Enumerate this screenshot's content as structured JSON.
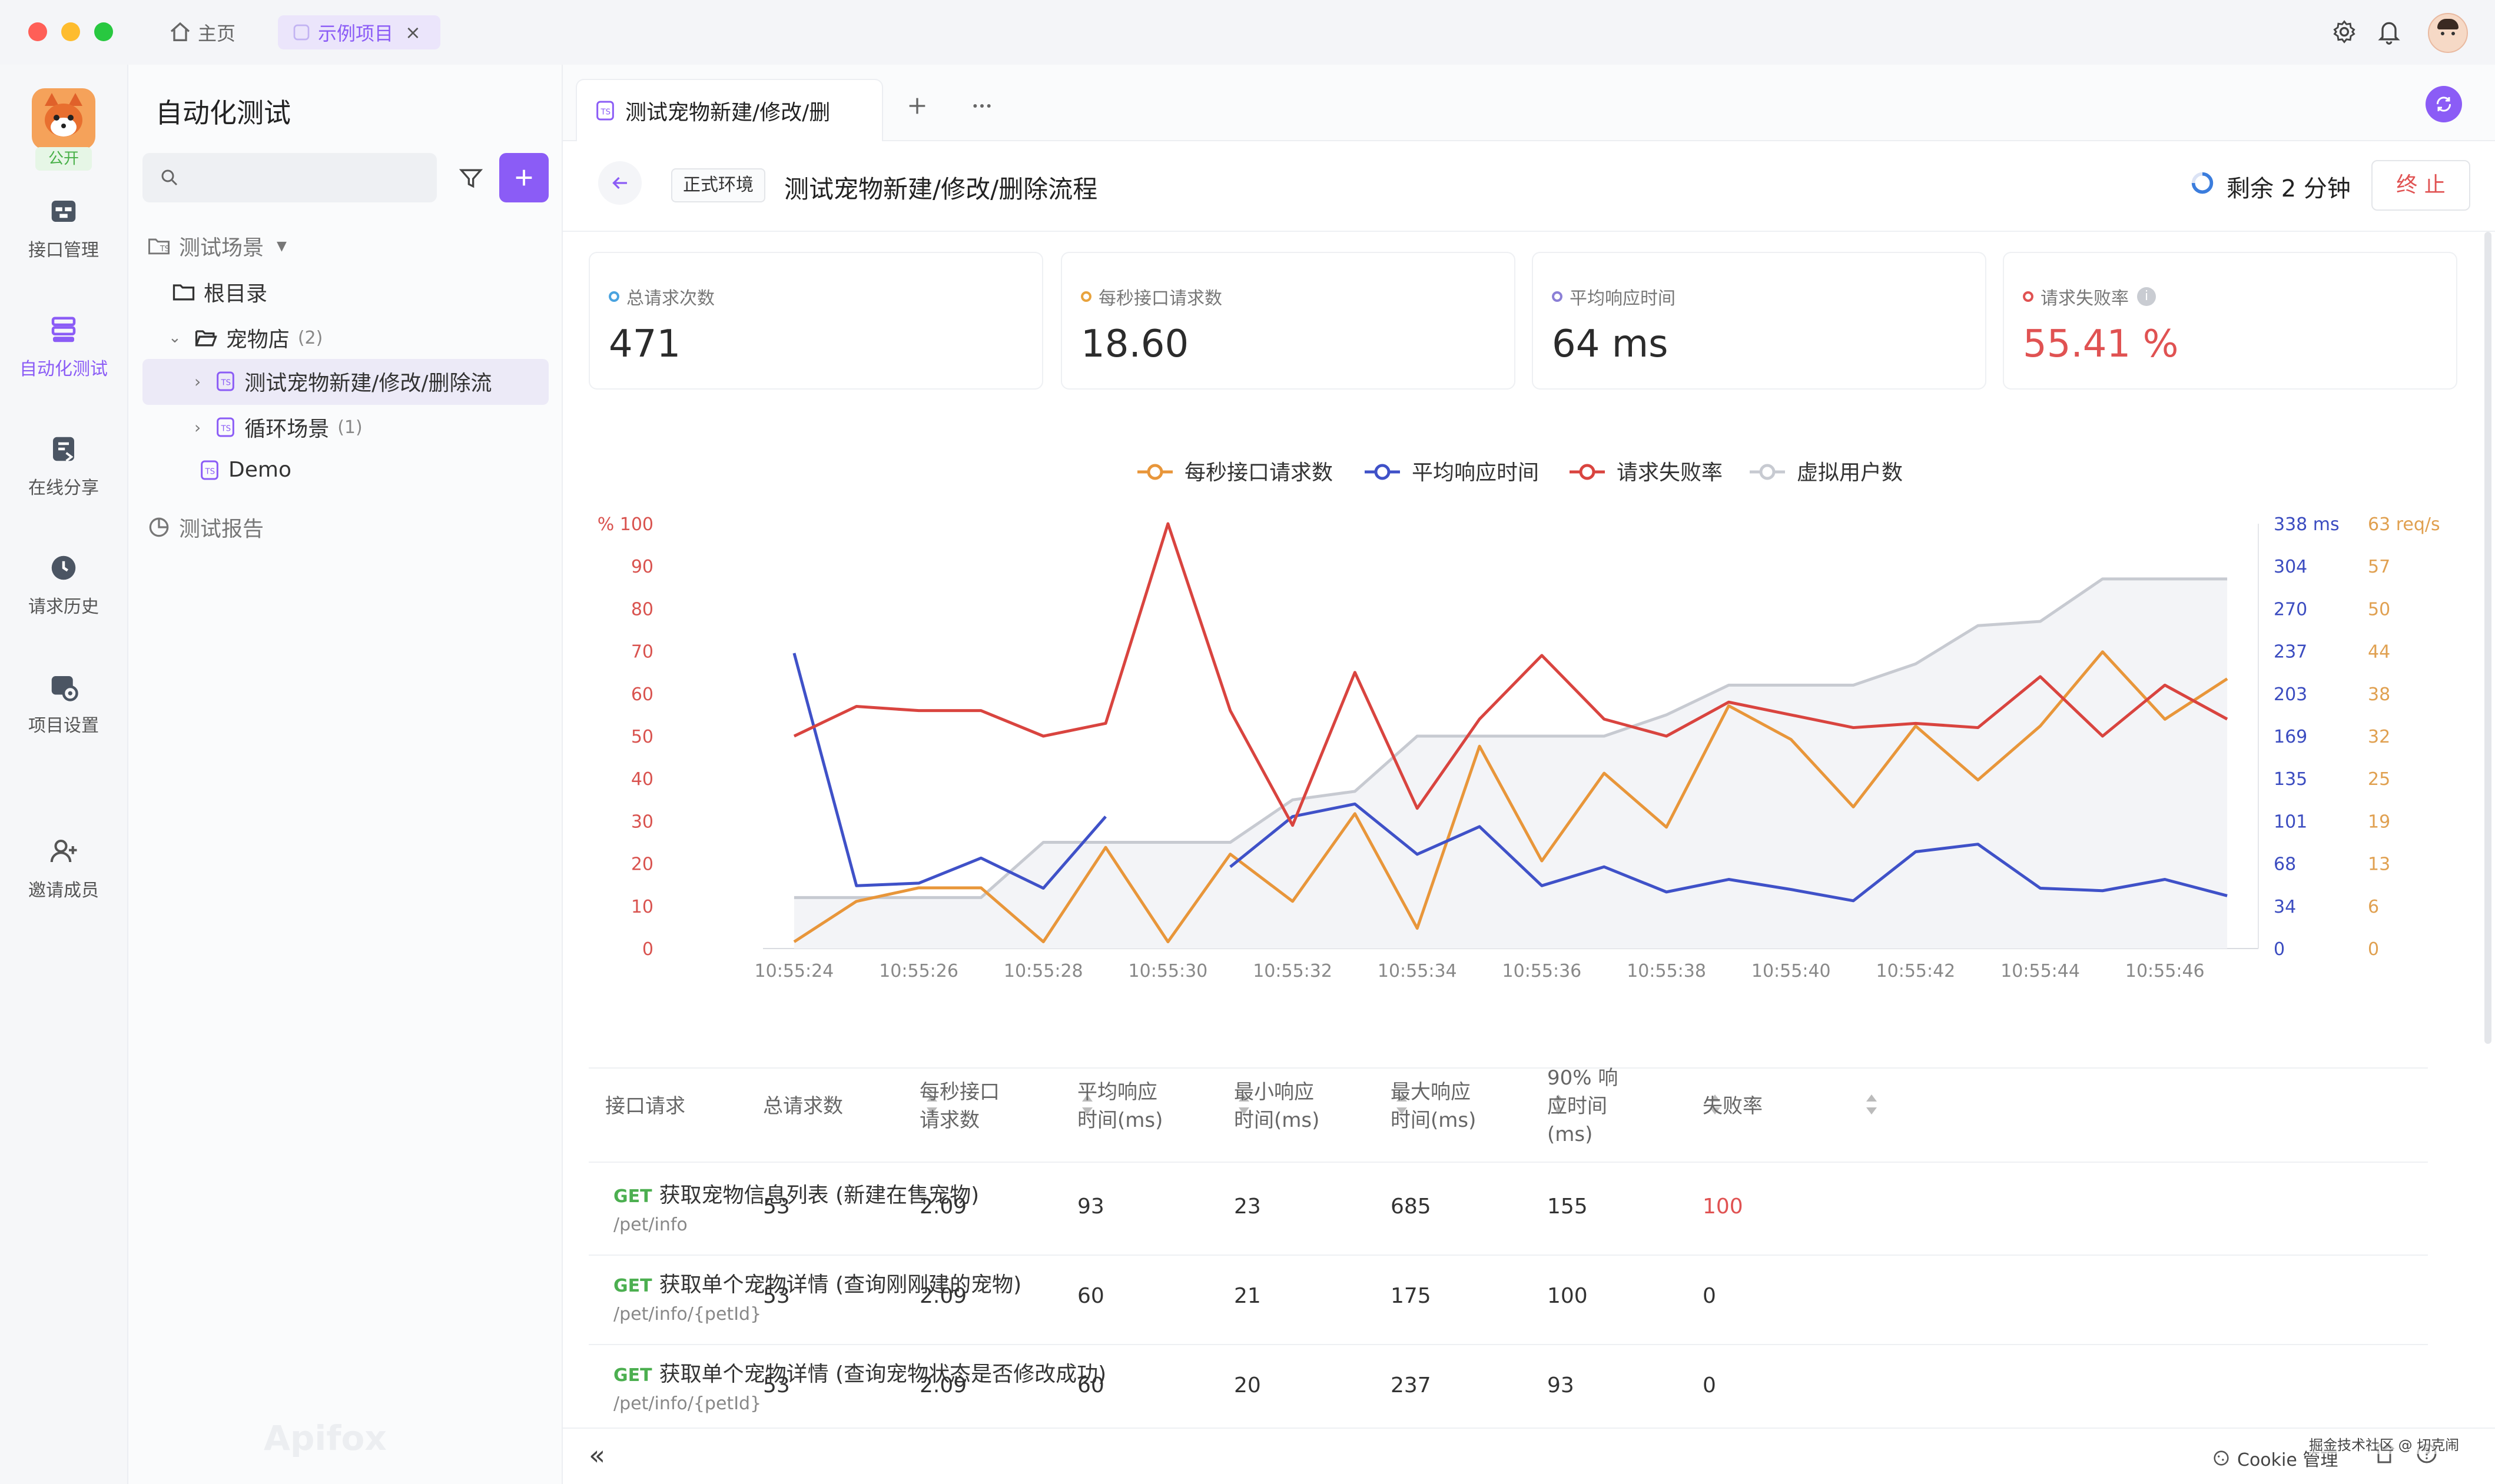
{
  "titlebar": {
    "home_tab": "主页",
    "project_tab": "示例项目",
    "close_glyph": "×"
  },
  "project": {
    "badge": "公开"
  },
  "nav": [
    {
      "label": "接口管理",
      "icon": "api-icon"
    },
    {
      "label": "自动化测试",
      "icon": "automation-icon",
      "active": true
    },
    {
      "label": "在线分享",
      "icon": "share-icon"
    },
    {
      "label": "请求历史",
      "icon": "history-icon"
    },
    {
      "label": "项目设置",
      "icon": "settings-icon"
    },
    {
      "label": "邀请成员",
      "icon": "invite-icon"
    }
  ],
  "tree": {
    "title": "自动化测试",
    "search_placeholder": "",
    "scenes_label": "测试场景",
    "root": "根目录",
    "folder": "宠物店",
    "folder_count": "(2)",
    "item1": "测试宠物新建/修改/删除流",
    "item2": "循环场景",
    "item2_count": "(1)",
    "item3": "Demo",
    "reports": "测试报告",
    "watermark": "Apifox"
  },
  "tab": {
    "title": "测试宠物新建/修改/删"
  },
  "header": {
    "env": "正式环境",
    "title": "测试宠物新建/修改/删除流程",
    "remaining": "剩余 2 分钟",
    "stop": "终 止"
  },
  "stats": [
    {
      "label": "总请求次数",
      "value": "471",
      "color": "#4aa3df"
    },
    {
      "label": "每秒接口请求数",
      "value": "18.60",
      "color": "#e8a33d"
    },
    {
      "label": "平均响应时间",
      "value": "64 ms",
      "color": "#8b7fd6"
    },
    {
      "label": "请求失败率",
      "value": "55.41 %",
      "color": "#e05252",
      "info": "i"
    }
  ],
  "chart_data": {
    "type": "line",
    "x": [
      "10:55:24",
      "10:55:25",
      "10:55:26",
      "10:55:27",
      "10:55:28",
      "10:55:29",
      "10:55:30",
      "10:55:31",
      "10:55:32",
      "10:55:33",
      "10:55:34",
      "10:55:35",
      "10:55:36",
      "10:55:37",
      "10:55:38",
      "10:55:39",
      "10:55:40",
      "10:55:41",
      "10:55:42",
      "10:55:43",
      "10:55:44",
      "10:55:45",
      "10:55:46",
      "10:55:47"
    ],
    "x_tick_labels": [
      "10:55:24",
      "10:55:26",
      "10:55:28",
      "10:55:30",
      "10:55:32",
      "10:55:34",
      "10:55:36",
      "10:55:38",
      "10:55:40",
      "10:55:42",
      "10:55:44",
      "10:55:46"
    ],
    "legend_position": "top-center",
    "left_axis": {
      "unit": "%",
      "ticks": [
        "100",
        "90",
        "80",
        "70",
        "60",
        "50",
        "40",
        "30",
        "20",
        "10",
        "0"
      ],
      "color": "#d9534f"
    },
    "right_axis_ms": {
      "unit": "ms",
      "ticks": [
        "338",
        "304",
        "270",
        "237",
        "203",
        "169",
        "135",
        "101",
        "68",
        "34",
        "0"
      ],
      "color": "#3b4cc0",
      "range": [
        0,
        338
      ]
    },
    "right_axis_req": {
      "unit": "req/s",
      "ticks": [
        "63",
        "57",
        "50",
        "44",
        "38",
        "32",
        "25",
        "19",
        "13",
        "6",
        "0"
      ],
      "color": "#e0a050",
      "range": [
        0,
        63
      ]
    },
    "series": [
      {
        "name": "每秒接口请求数",
        "color": "#e8963a",
        "axis": "req",
        "values": [
          1,
          7,
          9,
          9,
          1,
          15,
          1,
          14,
          7,
          20,
          3,
          30,
          13,
          26,
          18,
          36,
          31,
          21,
          33,
          25,
          33,
          44,
          34,
          40
        ]
      },
      {
        "name": "平均响应时间",
        "color": "#3f51c8",
        "axis": "ms",
        "values": [
          235,
          50,
          52,
          72,
          48,
          105,
          null,
          65,
          105,
          115,
          75,
          97,
          50,
          65,
          45,
          55,
          47,
          38,
          77,
          83,
          48,
          46,
          55,
          42
        ]
      },
      {
        "name": "请求失败率",
        "color": "#d9443f",
        "axis": "pct",
        "values": [
          50,
          57,
          56,
          56,
          50,
          53,
          100,
          56,
          29,
          65,
          33,
          54,
          69,
          54,
          50,
          58,
          55,
          52,
          53,
          52,
          64,
          50,
          62,
          54
        ]
      },
      {
        "name": "虚拟用户数",
        "color": "#c7cad1",
        "axis": "pct",
        "fill": true,
        "values": [
          12,
          12,
          12,
          12,
          25,
          25,
          25,
          25,
          35,
          37,
          50,
          50,
          50,
          50,
          55,
          62,
          62,
          62,
          67,
          76,
          77,
          87,
          87,
          87
        ]
      }
    ]
  },
  "table": {
    "headers": [
      "接口请求",
      "总请求数",
      "每秒接口\n请求数",
      "平均响应\n时间(ms)",
      "最小响应\n时间(ms)",
      "最大响应\n时间(ms)",
      "90% 响\n应时间\n(ms)",
      "失败率"
    ],
    "rows": [
      {
        "method": "GET",
        "name": "获取宠物信息列表 (新建在售宠物)",
        "path": "/pet/info",
        "total": "53",
        "rps": "2.09",
        "avg": "93",
        "min": "23",
        "max": "685",
        "p90": "155",
        "fail": "100",
        "fail_color": "#e05252"
      },
      {
        "method": "GET",
        "name": "获取单个宠物详情 (查询刚刚建的宠物)",
        "path": "/pet/info/{petId}",
        "total": "53",
        "rps": "2.09",
        "avg": "60",
        "min": "21",
        "max": "175",
        "p90": "100",
        "fail": "0",
        "fail_color": "#333333"
      },
      {
        "method": "GET",
        "name": "获取单个宠物详情 (查询宠物状态是否修改成功)",
        "path": "/pet/info/{petId}",
        "total": "53",
        "rps": "2.09",
        "avg": "60",
        "min": "20",
        "max": "237",
        "p90": "93",
        "fail": "0",
        "fail_color": "#333333"
      }
    ]
  },
  "footer": {
    "collapse": "«",
    "cookie": "Cookie 管理",
    "credit": "掘金技术社区 @ 切克闹"
  },
  "colors": {
    "accent": "#8b5cf6",
    "danger": "#e05252",
    "get": "#4caf50"
  }
}
